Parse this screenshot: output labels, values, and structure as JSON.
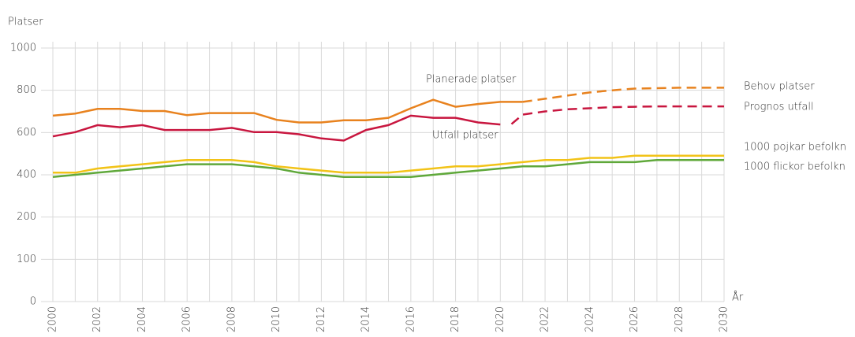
{
  "chart_data": {
    "type": "line",
    "y_label": "Platser",
    "x_label": "År",
    "ylim": [
      0,
      1000
    ],
    "yticks": [
      0,
      100,
      200,
      400,
      600,
      800,
      1000
    ],
    "xlim": [
      2000,
      2030
    ],
    "xticks": [
      2000,
      2002,
      2004,
      2006,
      2008,
      2010,
      2012,
      2014,
      2016,
      2018,
      2020,
      2022,
      2024,
      2026,
      2028,
      2030
    ],
    "grid": true,
    "series": [
      {
        "name": "Planerade platser",
        "color": "#e8821e",
        "dashed": false,
        "x": [
          2000,
          2001,
          2002,
          2003,
          2004,
          2005,
          2006,
          2007,
          2008,
          2009,
          2010,
          2011,
          2012,
          2013,
          2014,
          2015,
          2016,
          2017,
          2018,
          2019,
          2020,
          2021
        ],
        "values": [
          680,
          690,
          712,
          712,
          702,
          702,
          682,
          692,
          692,
          692,
          660,
          648,
          648,
          658,
          658,
          670,
          715,
          755,
          722,
          735,
          745,
          745
        ]
      },
      {
        "name": "Utfall platser",
        "color": "#c8163f",
        "dashed": false,
        "x": [
          2000,
          2001,
          2002,
          2003,
          2004,
          2005,
          2006,
          2007,
          2008,
          2009,
          2010,
          2011,
          2012,
          2013,
          2014,
          2015,
          2016,
          2017,
          2018,
          2019,
          2020
        ],
        "values": [
          582,
          602,
          635,
          625,
          635,
          612,
          612,
          612,
          622,
          602,
          602,
          592,
          572,
          562,
          612,
          635,
          680,
          670,
          670,
          648,
          638
        ]
      },
      {
        "name": "Behov platser",
        "color": "#e8821e",
        "dashed": true,
        "x": [
          2021,
          2022,
          2023,
          2024,
          2025,
          2026,
          2027,
          2028,
          2029,
          2030
        ],
        "values": [
          745,
          760,
          775,
          790,
          800,
          808,
          810,
          812,
          812,
          812
        ]
      },
      {
        "name": "Prognos utfall",
        "color": "#c8163f",
        "dashed": true,
        "x": [
          2020.5,
          2021,
          2022,
          2023,
          2024,
          2025,
          2026,
          2027,
          2028,
          2029,
          2030
        ],
        "values": [
          640,
          685,
          700,
          710,
          715,
          720,
          722,
          724,
          724,
          724,
          724
        ]
      },
      {
        "name": "1000 pojkar befolkn",
        "color": "#f2c318",
        "dashed": false,
        "x": [
          2000,
          2001,
          2002,
          2003,
          2004,
          2005,
          2006,
          2007,
          2008,
          2009,
          2010,
          2011,
          2012,
          2013,
          2014,
          2015,
          2016,
          2017,
          2018,
          2019,
          2020,
          2021,
          2022,
          2023,
          2024,
          2025,
          2026,
          2027,
          2028,
          2029,
          2030
        ],
        "values": [
          410,
          410,
          430,
          440,
          450,
          460,
          470,
          470,
          470,
          460,
          440,
          430,
          420,
          410,
          410,
          410,
          420,
          430,
          440,
          440,
          450,
          460,
          470,
          470,
          480,
          480,
          490,
          490,
          490,
          490,
          490
        ]
      },
      {
        "name": "1000 flickor befolkn",
        "color": "#5fa83a",
        "dashed": false,
        "x": [
          2000,
          2001,
          2002,
          2003,
          2004,
          2005,
          2006,
          2007,
          2008,
          2009,
          2010,
          2011,
          2012,
          2013,
          2014,
          2015,
          2016,
          2017,
          2018,
          2019,
          2020,
          2021,
          2022,
          2023,
          2024,
          2025,
          2026,
          2027,
          2028,
          2029,
          2030
        ],
        "values": [
          390,
          400,
          410,
          420,
          430,
          440,
          450,
          450,
          450,
          440,
          430,
          410,
          400,
          390,
          390,
          390,
          390,
          400,
          410,
          420,
          430,
          440,
          440,
          450,
          460,
          460,
          460,
          470,
          470,
          470,
          470
        ]
      }
    ]
  }
}
